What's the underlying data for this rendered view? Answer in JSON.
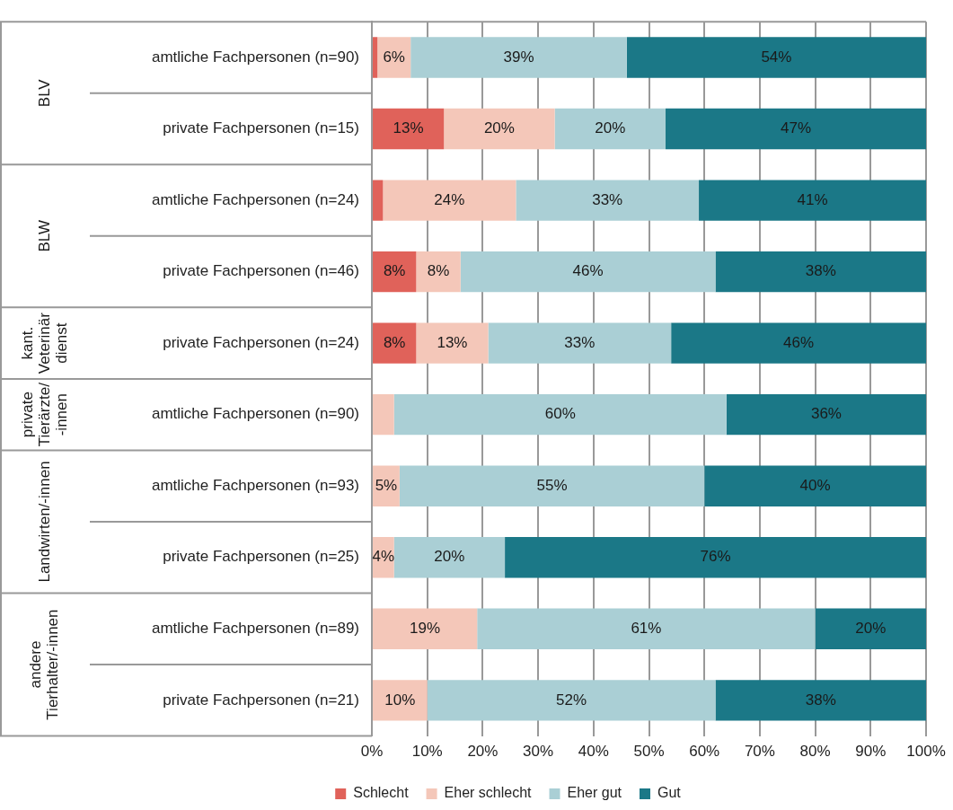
{
  "chart_data": {
    "type": "bar",
    "orientation": "horizontal",
    "stacked": true,
    "categories": [
      "amtliche Fachpersonen (n=90)",
      "private Fachpersonen (n=15)",
      "amtliche Fachpersonen (n=24)",
      "private Fachpersonen (n=46)",
      "private Fachpersonen (n=24)",
      "amtliche Fachpersonen (n=90)",
      "amtliche Fachpersonen (n=93)",
      "private Fachpersonen (n=25)",
      "amtliche Fachpersonen (n=89)",
      "private Fachpersonen (n=21)"
    ],
    "series": [
      {
        "name": "Schlecht",
        "color": "#e0625a",
        "values": [
          1,
          13,
          2,
          8,
          8,
          0,
          0,
          0,
          0,
          0
        ],
        "value_labels": [
          null,
          "13%",
          null,
          "8%",
          "8%",
          null,
          null,
          null,
          null,
          null
        ]
      },
      {
        "name": "Eher schlecht",
        "color": "#f4c7b9",
        "values": [
          6,
          20,
          24,
          8,
          13,
          4,
          5,
          4,
          19,
          10
        ],
        "value_labels": [
          "6%",
          "20%",
          "24%",
          "8%",
          "13%",
          null,
          "5%",
          "4%",
          "19%",
          "10%"
        ]
      },
      {
        "name": "Eher gut",
        "color": "#aacfd5",
        "values": [
          39,
          20,
          33,
          46,
          33,
          60,
          55,
          20,
          61,
          52
        ],
        "value_labels": [
          "39%",
          "20%",
          "33%",
          "46%",
          "33%",
          "60%",
          "55%",
          "20%",
          "61%",
          "52%"
        ]
      },
      {
        "name": "Gut",
        "color": "#1b7887",
        "values": [
          54,
          47,
          41,
          38,
          46,
          36,
          40,
          76,
          20,
          38
        ],
        "value_labels": [
          "54%",
          "47%",
          "41%",
          "38%",
          "46%",
          "36%",
          "40%",
          "76%",
          "20%",
          "38%"
        ]
      }
    ],
    "xlim": [
      0,
      100
    ],
    "xticks": [
      {
        "value": 0,
        "label": "0%"
      },
      {
        "value": 10,
        "label": "10%"
      },
      {
        "value": 20,
        "label": "20%"
      },
      {
        "value": 30,
        "label": "30%"
      },
      {
        "value": 40,
        "label": "40%"
      },
      {
        "value": 50,
        "label": "50%"
      },
      {
        "value": 60,
        "label": "60%"
      },
      {
        "value": 70,
        "label": "70%"
      },
      {
        "value": 80,
        "label": "80%"
      },
      {
        "value": 90,
        "label": "90%"
      },
      {
        "value": 100,
        "label": "100%"
      }
    ],
    "grid": "x",
    "legend": "bottom",
    "marker": "square",
    "annotations": [
      "BLV",
      "BLW",
      "kant. Veterinärdienst",
      "private Tierärzte/-innen",
      "Landwirten/-innen",
      "andere Tierhalter/-innen"
    ]
  }
}
